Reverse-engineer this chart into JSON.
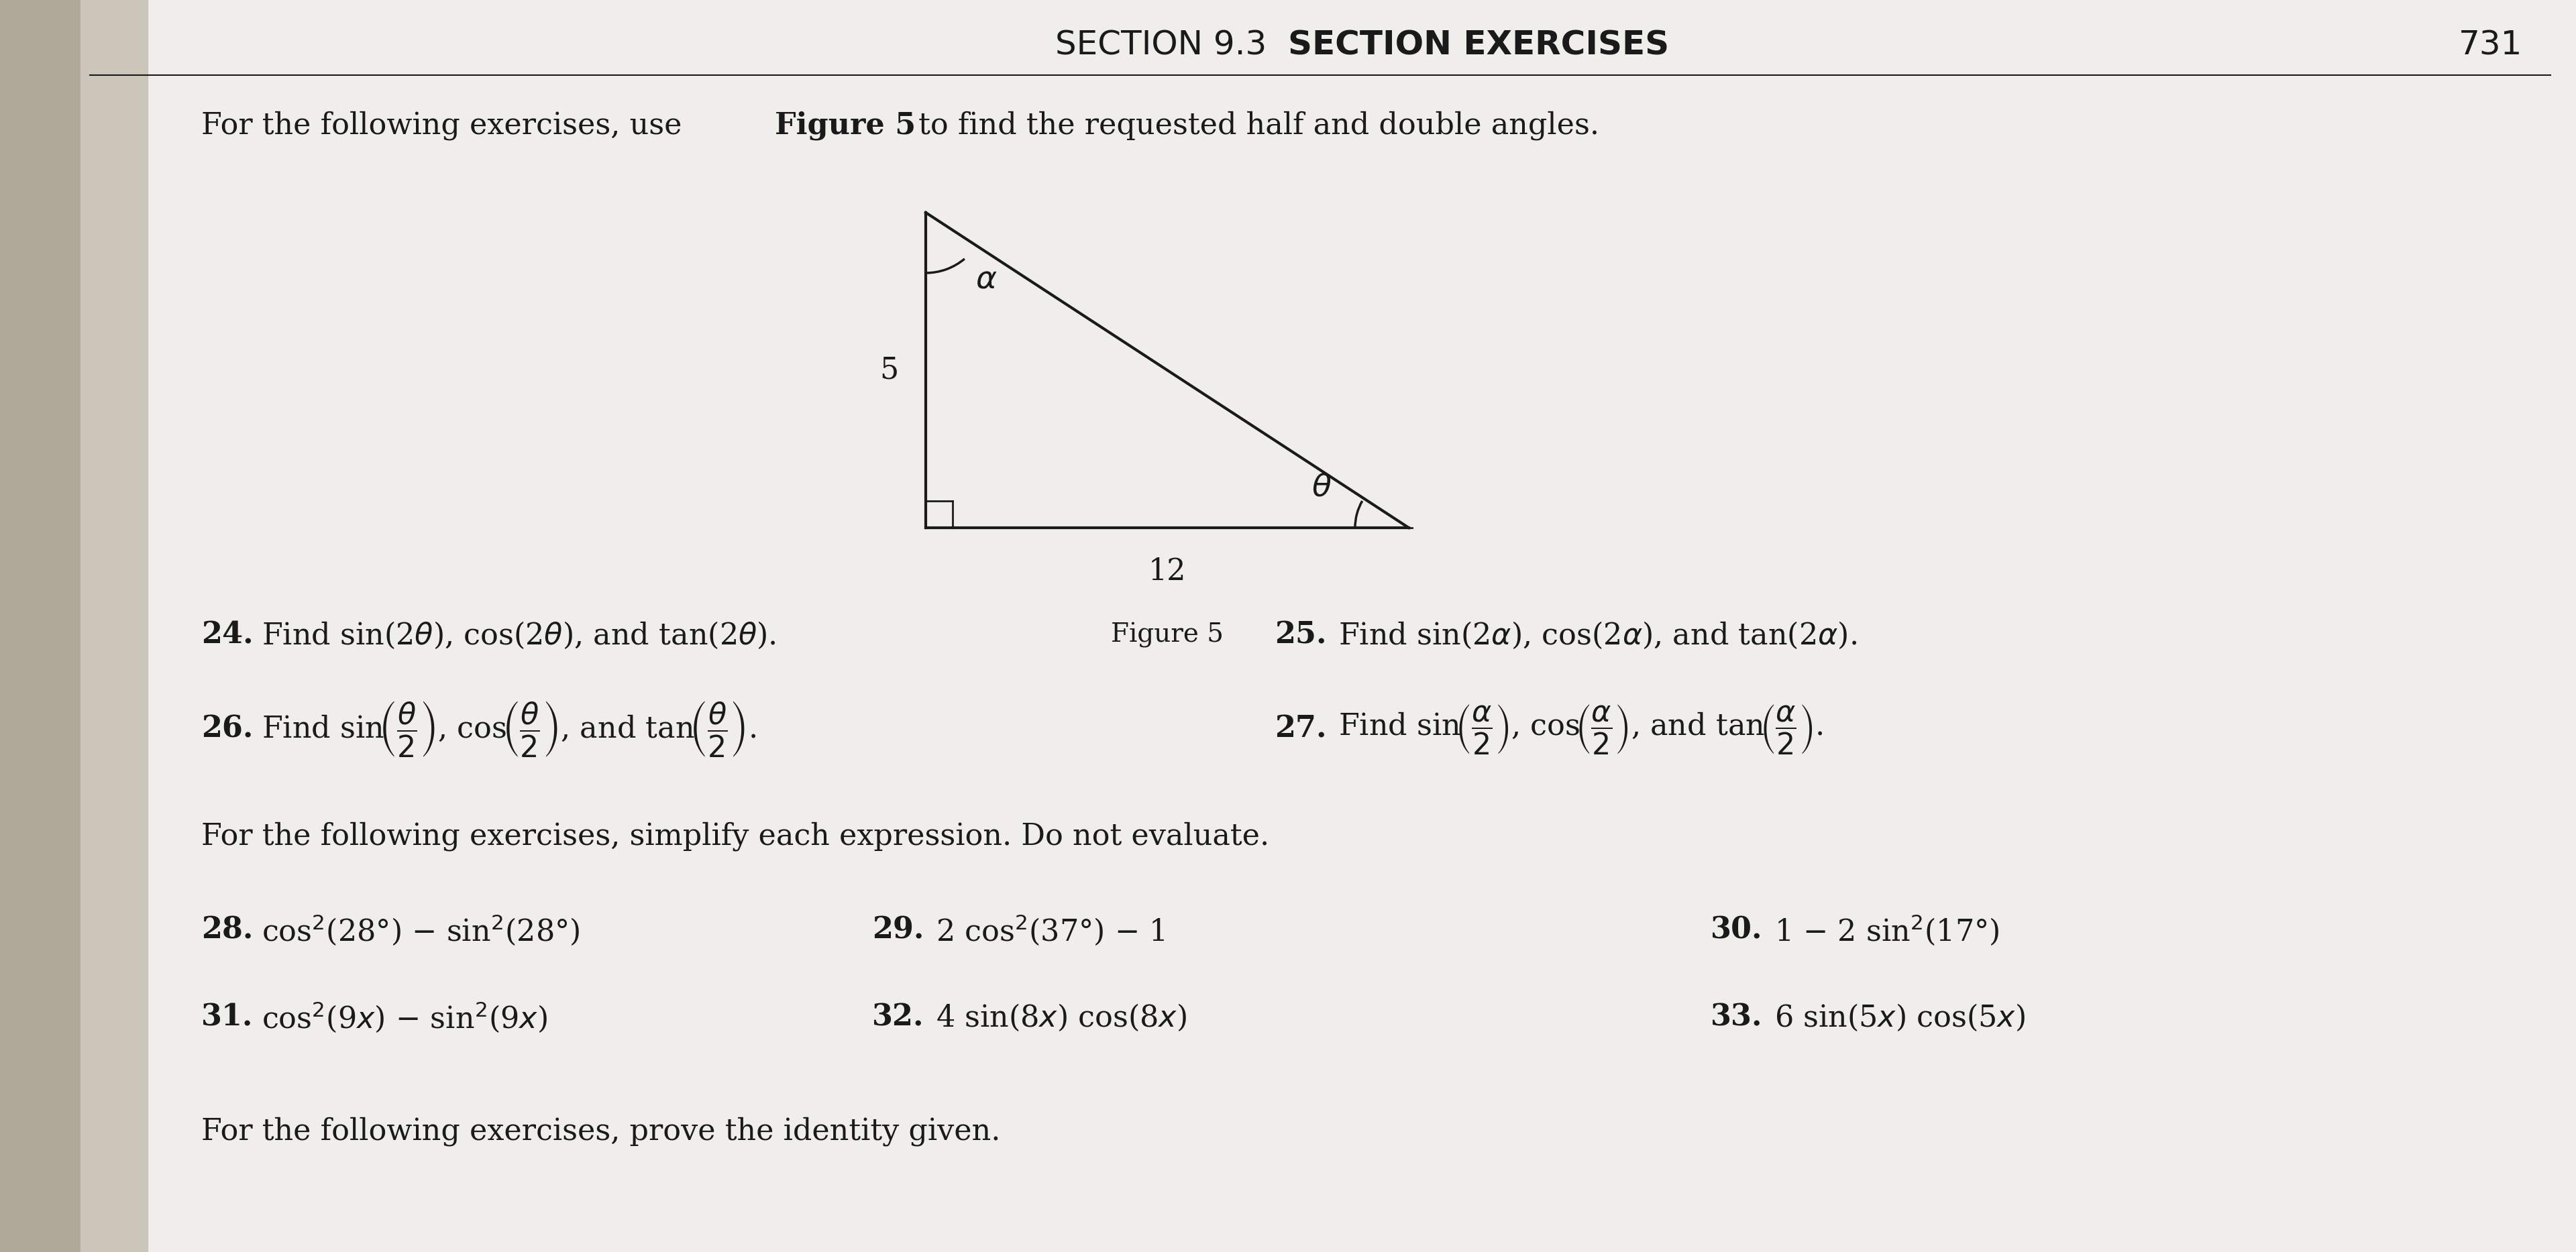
{
  "title_normal": "SECTION 9.3  ",
  "title_bold": "SECTION EXERCISES",
  "page_num": "731",
  "bg_color": "#e8e4de",
  "page_color": "#f0eeeb",
  "text_color": "#1a1a1a",
  "triangle": {
    "vert_label": "5",
    "horiz_label": "12",
    "alpha_label": "α",
    "theta_label": "θ"
  },
  "figure_label": "Figure 5",
  "row1_left_num": "24.",
  "row1_left_text": "Find sin(2θ), cos(2θ), and tan(2θ).",
  "row1_right_num": "25.",
  "row1_right_text": "Find sin(2α), cos(2α), and tan(2α).",
  "row2_left_num": "26.",
  "row2_right_num": "27.",
  "simplify_intro": "For the following exercises, simplify each expression. Do not evaluate.",
  "prove_intro": "For the following exercises, prove the identity given.",
  "ex28_num": "28.",
  "ex28_text": "cos²(28°) − sin²(28°)",
  "ex29_num": "29.",
  "ex29_text": "2 cos²(37°) − 1",
  "ex30_num": "30.",
  "ex30_text": "1 − 2 sin²(17°)",
  "ex31_num": "31.",
  "ex31_text": "cos²(9x) − sin²(9x)",
  "ex32_num": "32.",
  "ex32_text": "4 sin(8x) cos(8x)",
  "ex33_num": "33.",
  "ex33_text": "6 sin(5x) cos(5x)"
}
